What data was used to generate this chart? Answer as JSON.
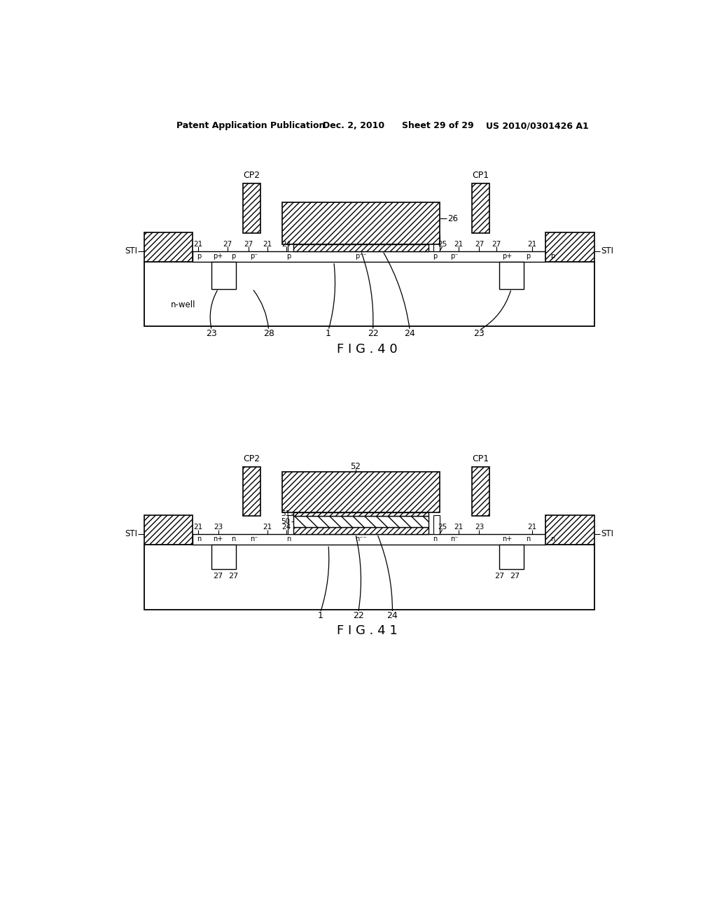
{
  "bg_color": "#ffffff",
  "header_line1": "Patent Application Publication",
  "header_line2": "Dec. 2, 2010",
  "header_line3": "Sheet 29 of 29",
  "header_line4": "US 2010/0301426 A1",
  "fig40_label": "F I G . 4 0",
  "fig41_label": "F I G . 4 1"
}
